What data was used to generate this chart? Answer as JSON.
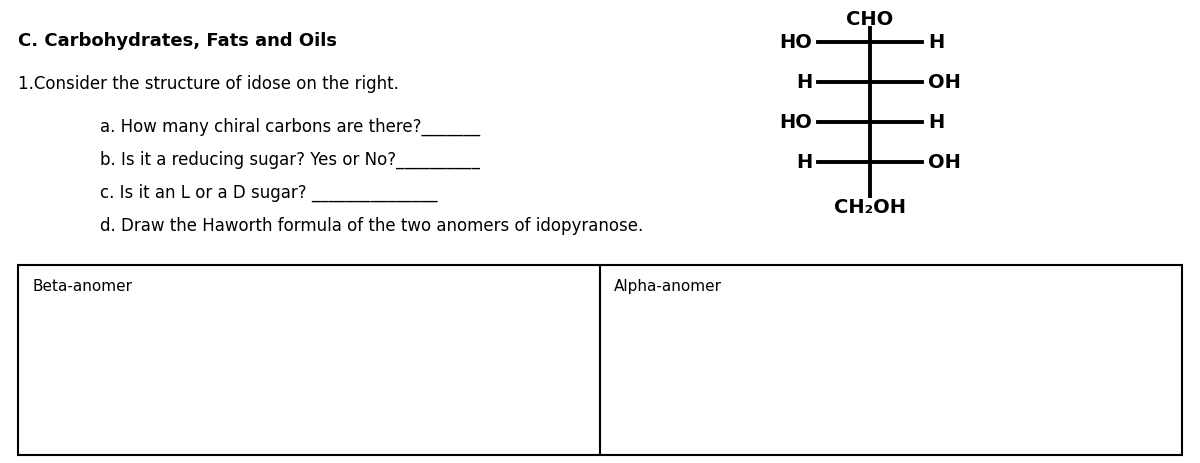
{
  "title": "C. Carbohydrates, Fats and Oils",
  "question_line": "1.Consider the structure of idose on the right.",
  "sub_questions": [
    "a. How many chiral carbons are there?_______",
    "b. Is it a reducing sugar? Yes or No?__________",
    "c. Is it an L or a D sugar? _______________",
    "d. Draw the Haworth formula of the two anomers of idopyranose."
  ],
  "structure_labels": {
    "top": "CHO",
    "row1_left": "HO",
    "row1_right": "H",
    "row2_left": "H",
    "row2_right": "OH",
    "row3_left": "HO",
    "row3_right": "H",
    "row4_left": "H",
    "row4_right": "OH",
    "bottom": "CH₂OH"
  },
  "box_labels": [
    "Beta-anomer",
    "Alpha-anomer"
  ],
  "bg_color": "#ffffff",
  "text_color": "#000000",
  "font_size_title": 13,
  "font_size_text": 12,
  "font_size_struct": 14,
  "font_size_box": 11,
  "fig_width": 12.0,
  "fig_height": 4.63,
  "dpi": 100
}
